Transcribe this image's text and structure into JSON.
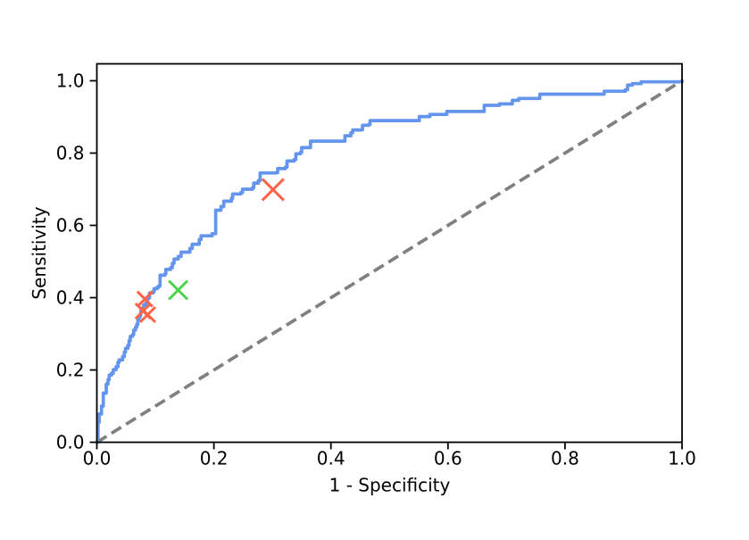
{
  "figure": {
    "background_color": "#ffffff",
    "frame_color": "#000000"
  },
  "chart_data": {
    "type": "line",
    "title": "",
    "xlabel": "1 - Specificity",
    "ylabel": "Sensitivity",
    "xlim": [
      0,
      1.0
    ],
    "ylim": [
      0,
      1.048
    ],
    "grid": false,
    "legend": null,
    "x_ticks": [
      0.0,
      0.2,
      0.4,
      0.6,
      0.8,
      1.0
    ],
    "x_tick_labels": [
      "0.0",
      "0.2",
      "0.4",
      "0.6",
      "0.8",
      "1.0"
    ],
    "y_ticks": [
      0.0,
      0.2,
      0.4,
      0.6,
      0.8,
      1.0
    ],
    "y_tick_labels": [
      "0.0",
      "0.2",
      "0.4",
      "0.6",
      "0.8",
      "1.0"
    ],
    "series": [
      {
        "name": "roc_curve",
        "type": "step_line",
        "color": "#6495ed",
        "line_width": 3.7,
        "points": [
          [
            0.0,
            0.0
          ],
          [
            0.002,
            0.055
          ],
          [
            0.004,
            0.078
          ],
          [
            0.008,
            0.1
          ],
          [
            0.011,
            0.136
          ],
          [
            0.016,
            0.161
          ],
          [
            0.019,
            0.173
          ],
          [
            0.021,
            0.186
          ],
          [
            0.025,
            0.191
          ],
          [
            0.028,
            0.201
          ],
          [
            0.033,
            0.209
          ],
          [
            0.036,
            0.221
          ],
          [
            0.038,
            0.228
          ],
          [
            0.044,
            0.237
          ],
          [
            0.047,
            0.25
          ],
          [
            0.049,
            0.26
          ],
          [
            0.053,
            0.268
          ],
          [
            0.055,
            0.281
          ],
          [
            0.057,
            0.293
          ],
          [
            0.061,
            0.298
          ],
          [
            0.063,
            0.31
          ],
          [
            0.066,
            0.318
          ],
          [
            0.068,
            0.326
          ],
          [
            0.07,
            0.34
          ],
          [
            0.072,
            0.347
          ],
          [
            0.074,
            0.352
          ],
          [
            0.075,
            0.363
          ],
          [
            0.078,
            0.367
          ],
          [
            0.08,
            0.38
          ],
          [
            0.083,
            0.384
          ],
          [
            0.085,
            0.396
          ],
          [
            0.088,
            0.4
          ],
          [
            0.09,
            0.413
          ],
          [
            0.096,
            0.417
          ],
          [
            0.098,
            0.425
          ],
          [
            0.103,
            0.429
          ],
          [
            0.106,
            0.433
          ],
          [
            0.108,
            0.462
          ],
          [
            0.116,
            0.466
          ],
          [
            0.118,
            0.478
          ],
          [
            0.126,
            0.483
          ],
          [
            0.129,
            0.495
          ],
          [
            0.132,
            0.507
          ],
          [
            0.139,
            0.514
          ],
          [
            0.144,
            0.526
          ],
          [
            0.159,
            0.536
          ],
          [
            0.163,
            0.548
          ],
          [
            0.175,
            0.561
          ],
          [
            0.178,
            0.571
          ],
          [
            0.197,
            0.577
          ],
          [
            0.203,
            0.642
          ],
          [
            0.212,
            0.652
          ],
          [
            0.217,
            0.667
          ],
          [
            0.23,
            0.675
          ],
          [
            0.232,
            0.687
          ],
          [
            0.246,
            0.691
          ],
          [
            0.249,
            0.7
          ],
          [
            0.266,
            0.704
          ],
          [
            0.268,
            0.717
          ],
          [
            0.276,
            0.724
          ],
          [
            0.279,
            0.745
          ],
          [
            0.307,
            0.746
          ],
          [
            0.309,
            0.757
          ],
          [
            0.322,
            0.761
          ],
          [
            0.325,
            0.778
          ],
          [
            0.337,
            0.782
          ],
          [
            0.34,
            0.798
          ],
          [
            0.348,
            0.802
          ],
          [
            0.35,
            0.815
          ],
          [
            0.365,
            0.833
          ],
          [
            0.421,
            0.833
          ],
          [
            0.424,
            0.848
          ],
          [
            0.434,
            0.856
          ],
          [
            0.437,
            0.864
          ],
          [
            0.452,
            0.865
          ],
          [
            0.454,
            0.877
          ],
          [
            0.465,
            0.88
          ],
          [
            0.467,
            0.89
          ],
          [
            0.549,
            0.89
          ],
          [
            0.551,
            0.901
          ],
          [
            0.569,
            0.907
          ],
          [
            0.598,
            0.915
          ],
          [
            0.662,
            0.932
          ],
          [
            0.688,
            0.936
          ],
          [
            0.71,
            0.946
          ],
          [
            0.721,
            0.951
          ],
          [
            0.757,
            0.963
          ],
          [
            0.867,
            0.971
          ],
          [
            0.903,
            0.975
          ],
          [
            0.907,
            0.988
          ],
          [
            0.915,
            0.992
          ],
          [
            0.93,
            0.997
          ],
          [
            1.0,
            1.0
          ]
        ]
      },
      {
        "name": "chance_diagonal",
        "type": "line",
        "style": "dashed",
        "color": "#808080",
        "line_width": 3.7,
        "dash": [
          12.8,
          6.4
        ],
        "points": [
          [
            0,
            0
          ],
          [
            1,
            1
          ]
        ]
      },
      {
        "name": "red_operating_points",
        "type": "scatter",
        "marker": "x",
        "color": "#ff6347",
        "stroke_width": 3,
        "points": [
          {
            "x": 0.082,
            "y": 0.396,
            "size": 17
          },
          {
            "x": 0.079,
            "y": 0.363,
            "size": 17
          },
          {
            "x": 0.087,
            "y": 0.353,
            "size": 17
          },
          {
            "x": 0.301,
            "y": 0.699,
            "size": 24
          }
        ]
      },
      {
        "name": "green_operating_point",
        "type": "scatter",
        "marker": "x",
        "color": "#4cd34c",
        "stroke_width": 3,
        "points": [
          {
            "x": 0.139,
            "y": 0.421,
            "size": 21
          }
        ]
      }
    ]
  }
}
